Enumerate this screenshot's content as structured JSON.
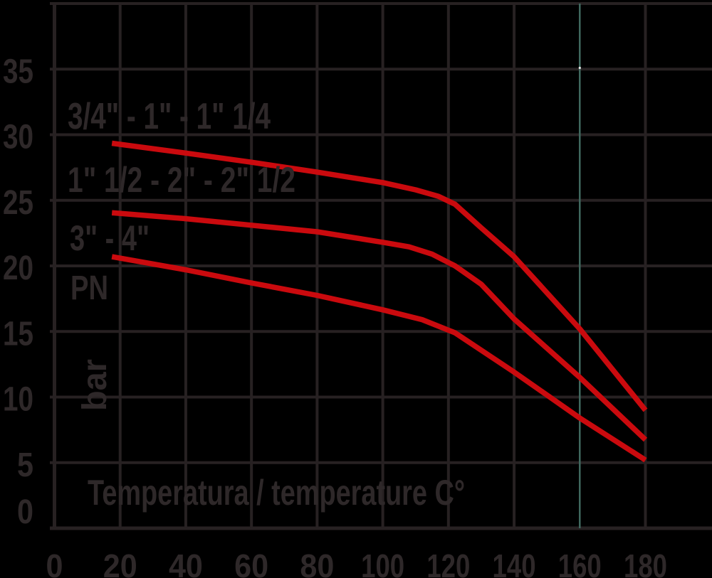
{
  "chart_data": {
    "type": "line",
    "title": "",
    "xlabel": "Temperatura / temperature C°",
    "ylabel_primary": "PN",
    "ylabel_unit": "bar",
    "x_ticks": [
      0,
      20,
      40,
      60,
      80,
      100,
      120,
      140,
      160,
      180
    ],
    "y_ticks": [
      0,
      5,
      10,
      15,
      20,
      25,
      30,
      35
    ],
    "xlim": [
      0,
      200
    ],
    "ylim": [
      0,
      40
    ],
    "grid": true,
    "legend_position": "inline-labels",
    "colors": {
      "curve_red": "#ca0a0e",
      "grid": "#272122",
      "text": "#2e2829",
      "background": "#000000",
      "highlight_gridline_160": "#40695f"
    },
    "series": [
      {
        "name": "small-sizes",
        "label": "3/4\" - 1\" - 1\" 1/4",
        "points": [
          [
            17.5,
            29.35
          ],
          [
            40,
            28.6
          ],
          [
            60,
            27.9
          ],
          [
            80,
            27.15
          ],
          [
            100,
            26.35
          ],
          [
            110,
            25.8
          ],
          [
            117,
            25.3
          ],
          [
            122,
            24.7
          ],
          [
            130,
            22.9
          ],
          [
            140,
            20.7
          ],
          [
            160,
            15.2
          ],
          [
            180,
            9.0
          ]
        ]
      },
      {
        "name": "medium-sizes",
        "label": "1\" 1/2 - 2\" - 2\" 1/2",
        "points": [
          [
            17.5,
            24.05
          ],
          [
            40,
            23.6
          ],
          [
            60,
            23.1
          ],
          [
            80,
            22.6
          ],
          [
            100,
            21.8
          ],
          [
            108,
            21.45
          ],
          [
            115,
            20.9
          ],
          [
            122,
            20.0
          ],
          [
            130,
            18.6
          ],
          [
            140,
            15.95
          ],
          [
            160,
            11.5
          ],
          [
            180,
            6.75
          ]
        ]
      },
      {
        "name": "large-sizes",
        "label": "3\" - 4\"",
        "points": [
          [
            17.5,
            20.7
          ],
          [
            40,
            19.7
          ],
          [
            60,
            18.7
          ],
          [
            80,
            17.75
          ],
          [
            100,
            16.65
          ],
          [
            112,
            15.9
          ],
          [
            122,
            14.9
          ],
          [
            140,
            11.9
          ],
          [
            160,
            8.4
          ],
          [
            180,
            5.2
          ]
        ]
      }
    ]
  }
}
